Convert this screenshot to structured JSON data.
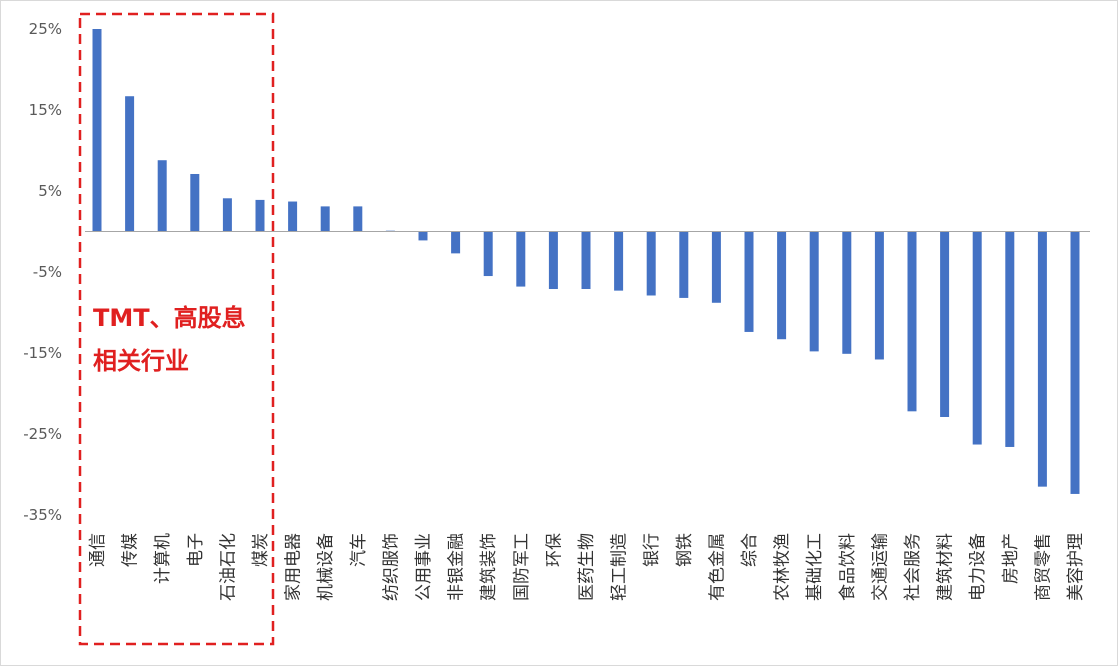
{
  "chart_data": {
    "type": "bar",
    "title": "",
    "xlabel": "",
    "ylabel": "",
    "ylim": [
      -35,
      25
    ],
    "y_tick_labels": [
      "25%",
      "15%",
      "5%",
      "-5%",
      "-15%",
      "-25%",
      "-35%"
    ],
    "y_tick_values": [
      25,
      15,
      5,
      -5,
      -15,
      -25,
      -35
    ],
    "grid": false,
    "legend": "none",
    "bar_color": "#4472C4",
    "categories": [
      "通信",
      "传媒",
      "计算机",
      "电子",
      "石油石化",
      "煤炭",
      "家用电器",
      "机械设备",
      "汽车",
      "纺织服饰",
      "公用事业",
      "非银金融",
      "建筑装饰",
      "国防军工",
      "环保",
      "医药生物",
      "轻工制造",
      "银行",
      "钢铁",
      "有色金属",
      "综合",
      "农林牧渔",
      "基础化工",
      "食品饮料",
      "交通运输",
      "社会服务",
      "建筑材料",
      "电力设备",
      "房地产",
      "商贸零售",
      "美容护理"
    ],
    "values": [
      25,
      16.7,
      8.8,
      7.1,
      4.1,
      3.9,
      3.7,
      3.1,
      3.1,
      0.1,
      -1.1,
      -2.7,
      -5.5,
      -6.8,
      -7.1,
      -7.1,
      -7.3,
      -7.9,
      -8.2,
      -8.8,
      -12.4,
      -13.3,
      -14.8,
      -15.1,
      -15.8,
      -22.2,
      -22.9,
      -26.3,
      -26.6,
      -31.5,
      -32.4
    ]
  },
  "annotation": {
    "text_line1": "TMT、高股息",
    "text_line2": "相关行业",
    "color": "#e02020"
  }
}
